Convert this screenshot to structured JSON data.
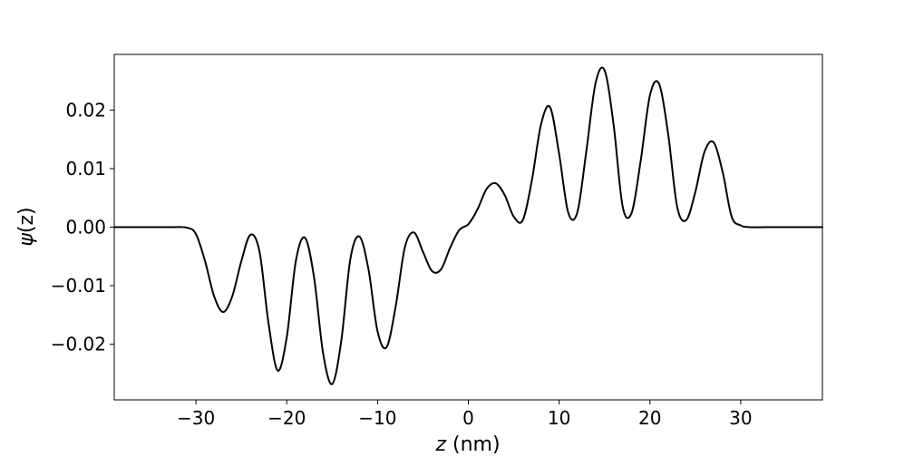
{
  "chart_data": {
    "type": "line",
    "title": "",
    "xlabel_var": "z",
    "xlabel_unit": " (nm)",
    "ylabel_var": "ψ",
    "ylabel_unit": "(z)",
    "xlim": [
      -39,
      39
    ],
    "ylim": [
      -0.0295,
      0.0295
    ],
    "xticks": [
      -30,
      -20,
      -10,
      0,
      10,
      20,
      30
    ],
    "xtick_labels": [
      "−30",
      "−20",
      "−10",
      "0",
      "10",
      "20",
      "30"
    ],
    "yticks": [
      -0.02,
      -0.01,
      0.0,
      0.01,
      0.02
    ],
    "ytick_labels": [
      "−0.02",
      "−0.01",
      "0.00",
      "0.01",
      "0.02"
    ],
    "grid": false,
    "legend": "none",
    "series": [
      {
        "color": "#000000",
        "x": [
          -39,
          -33,
          -31,
          -30,
          -29,
          -28,
          -27,
          -26,
          -25,
          -24,
          -23,
          -22,
          -21,
          -20,
          -19,
          -18,
          -17,
          -16,
          -15,
          -14,
          -13,
          -12,
          -11,
          -10,
          -9,
          -8,
          -7,
          -6,
          -5,
          -4,
          -3,
          -2,
          -1,
          0,
          1,
          2,
          3,
          4,
          5,
          6,
          7,
          8,
          9,
          10,
          11,
          12,
          13,
          14,
          15,
          16,
          17,
          18,
          19,
          20,
          21,
          22,
          23,
          24,
          25,
          26,
          27,
          28,
          29,
          30,
          31,
          33,
          39
        ],
        "y": [
          0.0,
          0.0,
          -0.0001,
          -0.0012,
          -0.0058,
          -0.0118,
          -0.0145,
          -0.0118,
          -0.0058,
          -0.0013,
          -0.0042,
          -0.0165,
          -0.0245,
          -0.0188,
          -0.0058,
          -0.0018,
          -0.0085,
          -0.0215,
          -0.0268,
          -0.0195,
          -0.0055,
          -0.0016,
          -0.0072,
          -0.0178,
          -0.0205,
          -0.0135,
          -0.0035,
          -0.0009,
          -0.0042,
          -0.0075,
          -0.0072,
          -0.0035,
          -0.0005,
          0.0005,
          0.003,
          0.0065,
          0.0075,
          0.0055,
          0.0018,
          0.0012,
          0.008,
          0.0175,
          0.0205,
          0.0125,
          0.0025,
          0.0025,
          0.013,
          0.0245,
          0.0268,
          0.0175,
          0.0035,
          0.0025,
          0.0115,
          0.0225,
          0.0245,
          0.016,
          0.0035,
          0.0012,
          0.006,
          0.0128,
          0.0145,
          0.0095,
          0.0018,
          0.0003,
          0.0,
          0.0,
          0.0
        ]
      }
    ]
  }
}
